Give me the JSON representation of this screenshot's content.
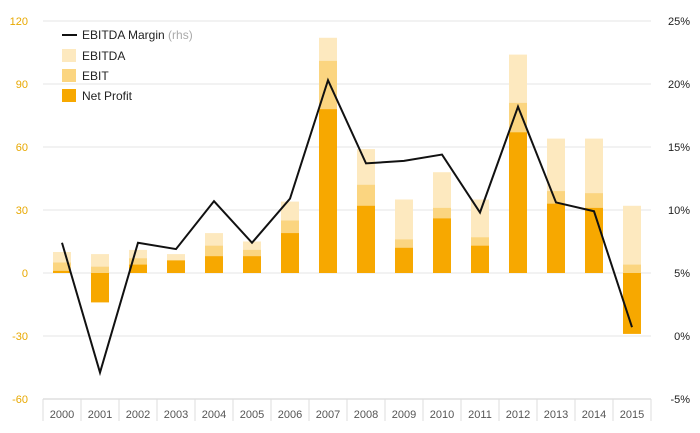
{
  "chart_data": {
    "type": "bar",
    "categories": [
      "2000",
      "2001",
      "2002",
      "2003",
      "2004",
      "2005",
      "2006",
      "2007",
      "2008",
      "2009",
      "2010",
      "2011",
      "2012",
      "2013",
      "2014",
      "2015"
    ],
    "series": [
      {
        "name": "EBITDA",
        "type": "bar",
        "axis": "left",
        "color": "#fde9bf",
        "values": [
          10,
          9,
          11,
          9,
          19,
          15,
          34,
          112,
          59,
          35,
          48,
          35,
          104,
          64,
          64,
          32
        ]
      },
      {
        "name": "EBIT",
        "type": "bar",
        "axis": "left",
        "color": "#fbd580",
        "values": [
          5,
          3,
          7,
          6,
          13,
          11,
          25,
          101,
          42,
          16,
          31,
          17,
          81,
          39,
          38,
          4
        ]
      },
      {
        "name": "Net Profit",
        "type": "bar",
        "axis": "left",
        "color": "#f7a800",
        "values": [
          1,
          -14,
          4,
          6,
          8,
          8,
          19,
          78,
          32,
          12,
          26,
          13,
          67,
          33,
          31,
          -29
        ]
      },
      {
        "name": "EBITDA Margin",
        "name_suffix": "(rhs)",
        "type": "line",
        "axis": "right",
        "color": "#111111",
        "values": [
          7.4,
          -2.9,
          7.4,
          6.9,
          10.7,
          7.4,
          10.9,
          20.3,
          13.7,
          13.9,
          14.4,
          9.8,
          18.2,
          10.6,
          9.9,
          0.7
        ]
      }
    ],
    "y_left": {
      "min": -60,
      "max": 120,
      "ticks": [
        "-60",
        "-30",
        "0",
        "30",
        "60",
        "90",
        "120"
      ],
      "color": "#e8a800"
    },
    "y_right": {
      "min": -5,
      "max": 25,
      "ticks": [
        "-5%",
        "0%",
        "5%",
        "10%",
        "15%",
        "20%",
        "25%"
      ]
    },
    "legend": {
      "position": "top-left",
      "order": [
        "EBITDA Margin",
        "EBITDA",
        "EBIT",
        "Net Profit"
      ]
    },
    "grid": true,
    "title": "",
    "xlabel": "",
    "ylabel": ""
  }
}
